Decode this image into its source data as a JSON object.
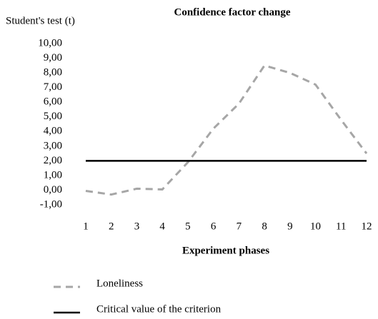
{
  "chart_data": {
    "type": "line",
    "title": "Confidence factor change",
    "y_label": "Student's test (t)",
    "x_label": "Experiment phases",
    "categories": [
      "1",
      "2",
      "3",
      "4",
      "5",
      "6",
      "7",
      "8",
      "9",
      "10",
      "11",
      "12"
    ],
    "series": [
      {
        "name": "Loneliness",
        "color": "#a6a6a6",
        "dashed": true,
        "values": [
          -0.05,
          -0.3,
          0.1,
          0.05,
          1.9,
          4.2,
          5.9,
          8.5,
          8.0,
          7.2,
          4.8,
          2.5
        ]
      },
      {
        "name": "Critical value of the criterion",
        "color": "#000000",
        "dashed": false,
        "values": [
          2,
          2,
          2,
          2,
          2,
          2,
          2,
          2,
          2,
          2,
          2,
          2
        ]
      }
    ],
    "ylim": [
      -1,
      10
    ],
    "yticks": [
      {
        "value": -1,
        "label": "-1,00"
      },
      {
        "value": 0,
        "label": "0,00"
      },
      {
        "value": 1,
        "label": "1,00"
      },
      {
        "value": 2,
        "label": "2,00"
      },
      {
        "value": 3,
        "label": "3,00"
      },
      {
        "value": 4,
        "label": "4,00"
      },
      {
        "value": 5,
        "label": "5,00"
      },
      {
        "value": 6,
        "label": "6,00"
      },
      {
        "value": 7,
        "label": "7,00"
      },
      {
        "value": 8,
        "label": "8,00"
      },
      {
        "value": 9,
        "label": "9,00"
      },
      {
        "value": 10,
        "label": "10,00"
      }
    ],
    "grid": false,
    "legend": "bottom"
  }
}
